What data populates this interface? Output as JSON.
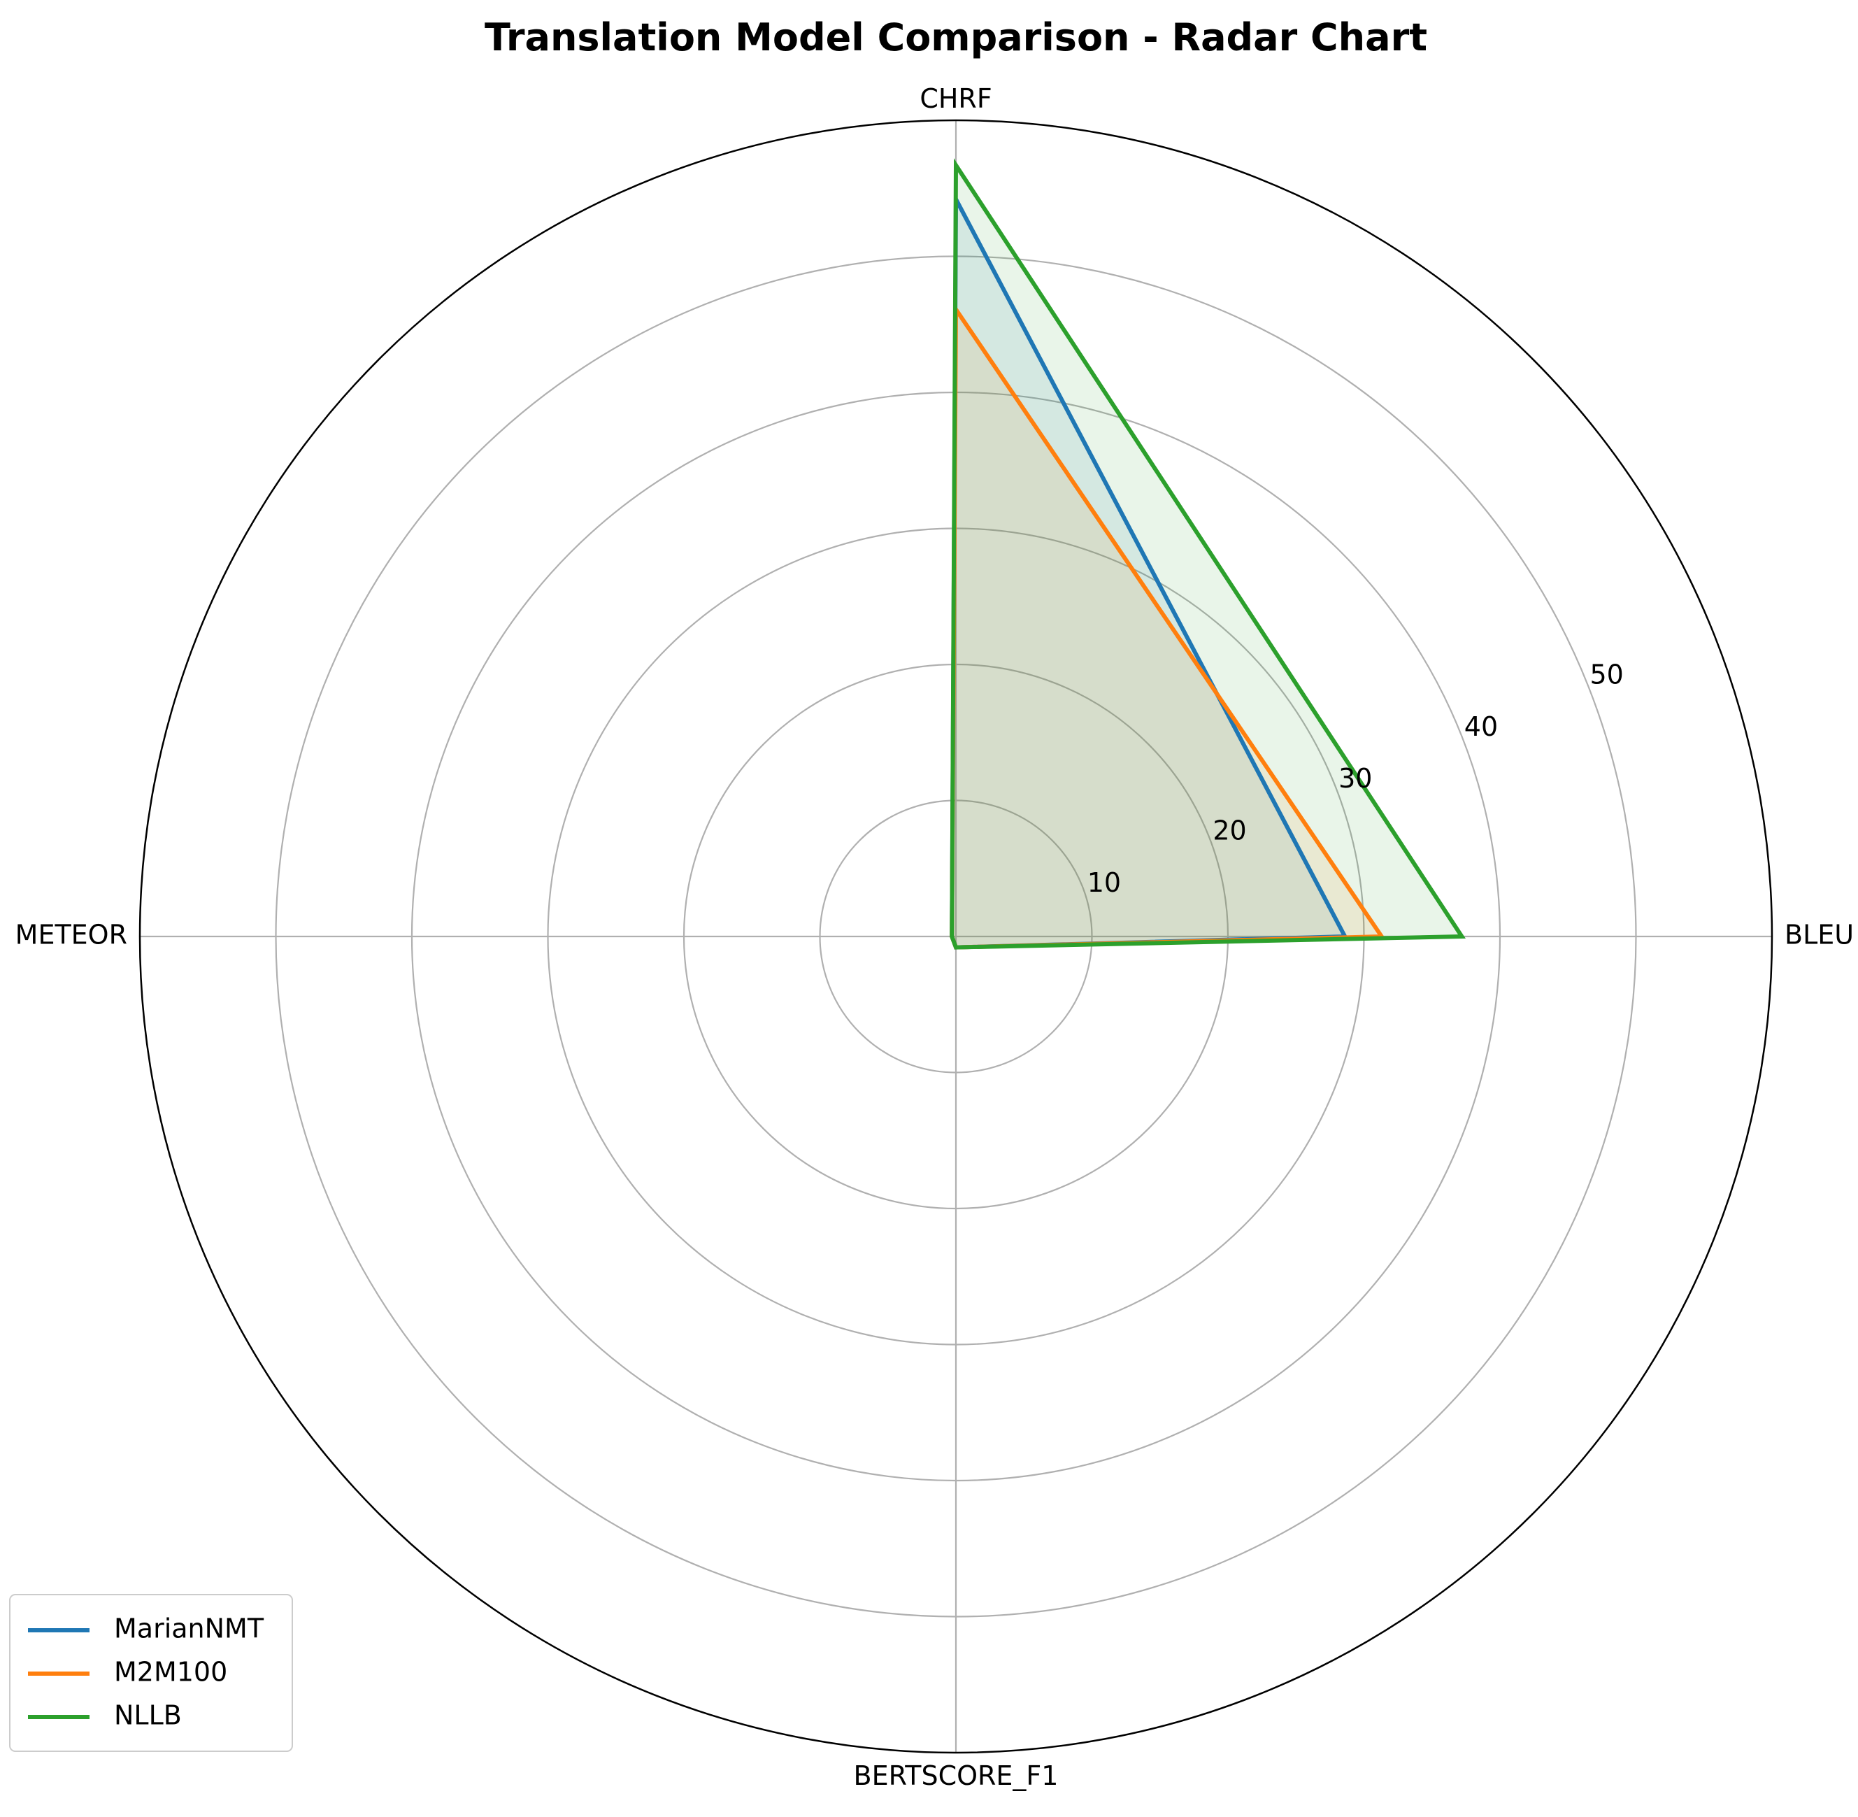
{
  "chart_data": {
    "type": "radar",
    "title": "Translation Model Comparison - Radar Chart",
    "axes": [
      "BLEU",
      "CHRF",
      "METEOR",
      "BERTSCORE_F1"
    ],
    "rlim": [
      0,
      60
    ],
    "rticks": [
      10,
      20,
      30,
      40,
      50
    ],
    "rtick_labels": [
      "10",
      "20",
      "30",
      "40",
      "50"
    ],
    "grid": true,
    "legend_position": "lower-left",
    "series": [
      {
        "name": "MarianNMT",
        "color": "#1f77b4",
        "values": [
          28.6,
          54.2,
          0.3,
          0.8
        ]
      },
      {
        "name": "M2M100",
        "color": "#ff7f0e",
        "values": [
          31.3,
          46.1,
          0.3,
          0.8
        ]
      },
      {
        "name": "NLLB",
        "color": "#2ca02c",
        "values": [
          37.2,
          56.7,
          0.3,
          0.8
        ]
      }
    ]
  }
}
